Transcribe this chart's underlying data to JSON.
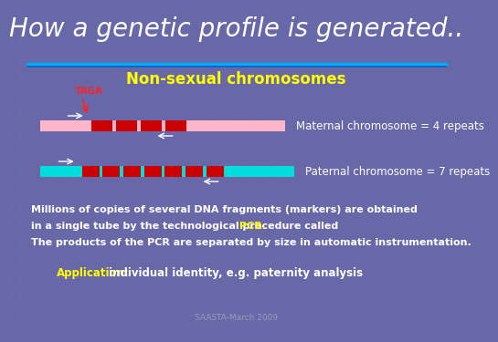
{
  "title": "How a genetic profile is generated..",
  "title_color": "#ffffff",
  "title_fontsize": 20,
  "bg_color": "#6868a8",
  "grid_color": "#7878b8",
  "header_line_color1": "#00aaff",
  "header_line_color2": "#0066cc",
  "subtitle": "Non-sexual chromosomes",
  "subtitle_color": "#ffff00",
  "subtitle_fontsize": 12,
  "taga_label": "TAGA",
  "taga_color": "#ff2222",
  "maternal_label": "Maternal chromosome = 4 repeats",
  "paternal_label": "Paternal chromosome = 7 repeats",
  "label_color": "#ffffff",
  "label_fontsize": 8.5,
  "maternal_bar_color": "#ffb6c8",
  "paternal_bar_color": "#00dddd",
  "repeat_color": "#cc0000",
  "arrow_color": "#ffffff",
  "text1": "Millions of copies of several DNA fragments (markers) are obtained",
  "text2a": "in a single tube by the technological procedure called ",
  "text2b": "PCR.",
  "text3": "The products of the PCR are separated by size in automatic instrumentation.",
  "text_color": "#ffffff",
  "text_fontsize": 8,
  "pcr_color": "#ffff00",
  "app_label": "Application:",
  "app_color": "#ffff00",
  "app_rest": " individual identity, e.g. paternity analysis",
  "app_fontsize": 8.5,
  "footer": "SAASTA-March 2009",
  "footer_color": "#9999bb",
  "footer_fontsize": 6.5,
  "mat_repeats": 4,
  "pat_repeats": 7
}
